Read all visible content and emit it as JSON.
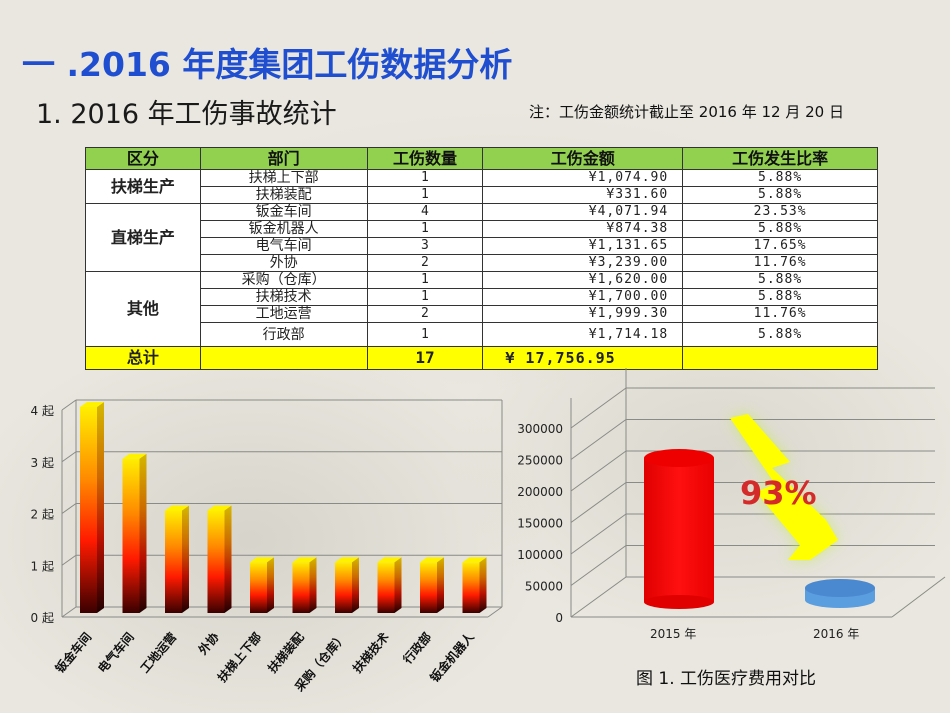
{
  "title": "一 .2016 年度集团工伤数据分析",
  "subtitle": "1.  2016 年工伤事故统计",
  "note": "注：工伤金额统计截止至 2016 年 12 月 20 日",
  "table": {
    "headers": [
      "区分",
      "部门",
      "工伤数量",
      "工伤金额",
      "工伤发生比率"
    ],
    "groups": [
      {
        "name": "扶梯生产",
        "rows": [
          {
            "dept": "扶梯上下部",
            "count": "1",
            "amount": "¥1,074.90",
            "rate": "5.88%"
          },
          {
            "dept": "扶梯装配",
            "count": "1",
            "amount": "¥331.60",
            "rate": "5.88%"
          }
        ]
      },
      {
        "name": "直梯生产",
        "rows": [
          {
            "dept": "钣金车间",
            "count": "4",
            "amount": "¥4,071.94",
            "rate": "23.53%"
          },
          {
            "dept": "钣金机器人",
            "count": "1",
            "amount": "¥874.38",
            "rate": "5.88%"
          },
          {
            "dept": "电气车间",
            "count": "3",
            "amount": "¥1,131.65",
            "rate": "17.65%"
          },
          {
            "dept": "外协",
            "count": "2",
            "amount": "¥3,239.00",
            "rate": "11.76%"
          }
        ]
      },
      {
        "name": "其他",
        "rows": [
          {
            "dept": "采购（仓库）",
            "count": "1",
            "amount": "¥1,620.00",
            "rate": "5.88%"
          },
          {
            "dept": "扶梯技术",
            "count": "1",
            "amount": "¥1,700.00",
            "rate": "5.88%"
          },
          {
            "dept": "工地运营",
            "count": "2",
            "amount": "¥1,999.30",
            "rate": "11.76%"
          },
          {
            "dept": "行政部",
            "count": "1",
            "amount": "¥1,714.18",
            "rate": "5.88%"
          }
        ]
      }
    ],
    "total": {
      "label": "总计",
      "dept": "",
      "count": "17",
      "amount": "¥  17,756.95",
      "rate": ""
    }
  },
  "caption": "图 1. 工伤医疗费用对比",
  "colors": {
    "title": "#1f4fd0",
    "header_bg": "#92d050",
    "total_bg": "#ffff00",
    "bar_2015": "#ff0000",
    "bar_2016": "#4a90d9",
    "arrow": "#ffff00",
    "pct_label": "#d42a2a"
  },
  "chart_data": [
    {
      "type": "bar",
      "title": "",
      "categories": [
        "钣金车间",
        "电气车间",
        "工地运营",
        "外协",
        "扶梯上下部",
        "扶梯装配",
        "采购（仓库）",
        "扶梯技术",
        "行政部",
        "钣金机器人"
      ],
      "values": [
        4,
        3,
        2,
        2,
        1,
        1,
        1,
        1,
        1,
        1
      ],
      "ytick_labels": [
        "0 起",
        "1 起",
        "2 起",
        "3 起",
        "4 起"
      ],
      "ylim": [
        0,
        4
      ],
      "xlabel": "",
      "ylabel": "",
      "grid": true,
      "style": "3d-gradient"
    },
    {
      "type": "bar",
      "title": "图 1. 工伤医疗费用对比",
      "categories": [
        "2015 年",
        "2016 年"
      ],
      "values": [
        265000,
        17757
      ],
      "ytick_labels": [
        "0",
        "50000",
        "100000",
        "150000",
        "200000",
        "250000",
        "300000"
      ],
      "ylim": [
        0,
        300000
      ],
      "annotations": [
        "93%"
      ],
      "grid": true,
      "style": "3d-cylinder"
    }
  ]
}
